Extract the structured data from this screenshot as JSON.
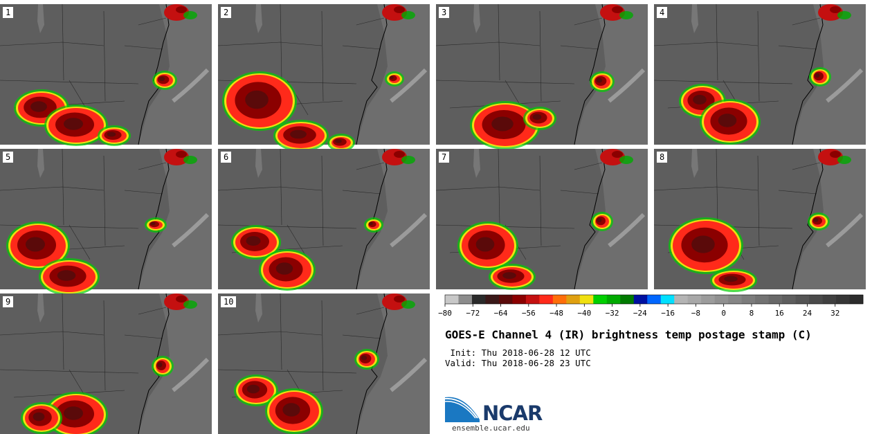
{
  "panels": [
    {
      "number": "1"
    },
    {
      "number": "2"
    },
    {
      "number": "3"
    },
    {
      "number": "4"
    },
    {
      "number": "5"
    },
    {
      "number": "6"
    },
    {
      "number": "7"
    },
    {
      "number": "8"
    },
    {
      "number": "9"
    },
    {
      "number": "10"
    }
  ],
  "colorbar": {
    "tick_labels": [
      "−80",
      "−72",
      "−64",
      "−56",
      "−48",
      "−40",
      "−32",
      "−24",
      "−16",
      "−8",
      "0",
      "8",
      "16",
      "24",
      "32"
    ],
    "colors": [
      "#c8c8c8",
      "#8c8c8c",
      "#2a2a2a",
      "#3a1818",
      "#5a0a0a",
      "#8b0000",
      "#c41010",
      "#ff2a1a",
      "#ff6e0a",
      "#e0a010",
      "#f0e010",
      "#00d000",
      "#00aa00",
      "#007a00",
      "#0010a0",
      "#0066ff",
      "#00e0ff",
      "#b4b4b4",
      "#a8a8a8",
      "#9c9c9c",
      "#909090",
      "#868686",
      "#7c7c7c",
      "#727272",
      "#686868",
      "#5e5e5e",
      "#545454",
      "#4a4a4a",
      "#404040",
      "#363636",
      "#2c2c2c"
    ]
  },
  "title": "GOES-E Channel 4 (IR) brightness temp postage stamp (C)",
  "init_line": " Init: Thu 2018-06-28 12 UTC",
  "valid_line": "Valid: Thu 2018-06-28 23 UTC",
  "logo": {
    "name": "NCAR",
    "url": "ensemble.ucar.edu"
  }
}
